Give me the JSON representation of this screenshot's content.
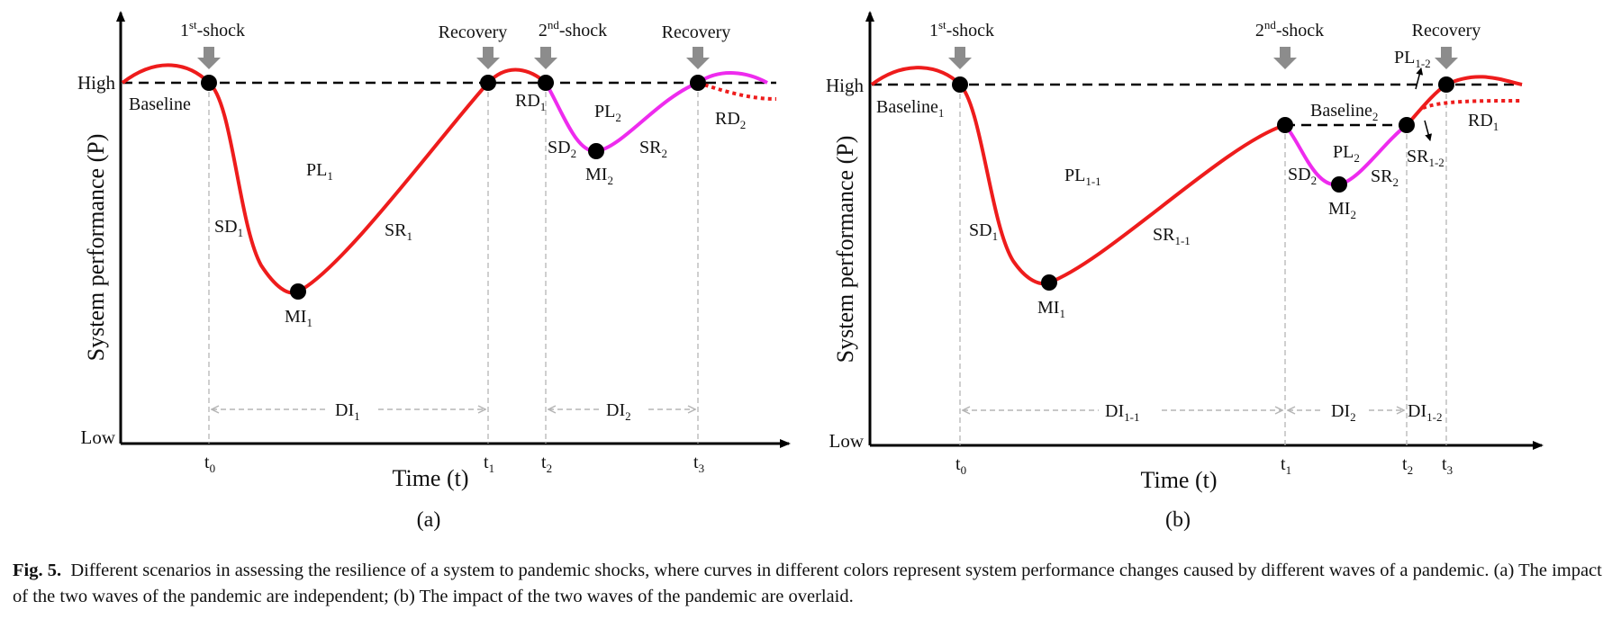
{
  "panel_a": {
    "y_axis_title": "System performance (P)",
    "x_axis_title": "Time (t)",
    "y_high": "High",
    "y_low": "Low",
    "shock1": "1st-shock",
    "shock2": "2nd-shock",
    "recovery1": "Recovery",
    "recovery2": "Recovery",
    "baseline": "Baseline",
    "pl1": "PL1",
    "pl2": "PL2",
    "sd1": "SD1",
    "sd2": "SD2",
    "sr1": "SR1",
    "sr2": "SR2",
    "mi1": "MI1",
    "mi2": "MI2",
    "rd1": "RD1",
    "rd2": "RD2",
    "di1": "DI1",
    "di2": "DI2",
    "t0": "t0",
    "t1": "t1",
    "t2": "t2",
    "t3": "t3",
    "label": "(a)"
  },
  "panel_b": {
    "y_axis_title": "System performance (P)",
    "x_axis_title": "Time (t)",
    "y_high": "High",
    "y_low": "Low",
    "shock1": "1st-shock",
    "shock2": "2nd-shock",
    "recovery": "Recovery",
    "baseline1": "Baseline1",
    "baseline2": "Baseline2",
    "pl11": "PL1-1",
    "pl2": "PL2",
    "pl12": "PL1-2",
    "sd1": "SD1",
    "sd2": "SD2",
    "sr11": "SR1-1",
    "sr2": "SR2",
    "sr12": "SR1-2",
    "mi1": "MI1",
    "mi2": "MI2",
    "rd1": "RD1",
    "di11": "DI1-1",
    "di2": "DI2",
    "di12": "DI1-2",
    "t0": "t0",
    "t1": "t1",
    "t2": "t2",
    "t3": "t3",
    "label": "(b)"
  },
  "caption": {
    "fig_label": "Fig. 5.",
    "text": "Different scenarios in assessing the resilience of a system to pandemic shocks, where curves in different colors represent system performance changes caused by different waves of a pandemic. (a) The impact of the two waves of the pandemic are independent; (b) The impact of the two waves of the pandemic are overlaid."
  },
  "colors": {
    "wave1": "#ee1c1c",
    "wave2": "#ee2bee",
    "shock_arrow": "#8c8c8c",
    "guide": "#b5b5b5"
  }
}
